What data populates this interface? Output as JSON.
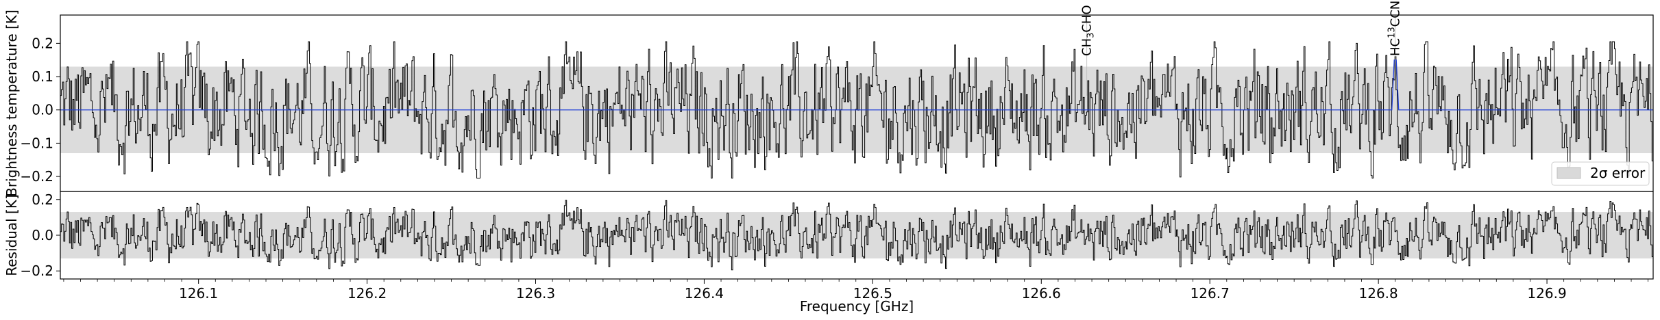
{
  "chart_data": [
    {
      "type": "line",
      "panel": "spectrum",
      "ylabel": "Brightness temperature [K]",
      "xlim": [
        126.018,
        126.963
      ],
      "ylim": [
        -0.245,
        0.285
      ],
      "yticks": [
        -0.2,
        -0.1,
        0.0,
        0.1,
        0.2
      ],
      "ytick_labels": [
        "−0.2",
        "−0.1",
        "0.0",
        "0.1",
        "0.2"
      ],
      "error_band": [
        -0.13,
        0.13
      ],
      "legend": {
        "label": "2σ error",
        "loc": "lower right"
      },
      "series": [
        {
          "role": "observed spectrum",
          "color": "#000000",
          "style": "steps",
          "x_start": 126.018,
          "x_end": 126.963,
          "y_sample": [
            0.06,
            -0.12,
            0.03,
            0.08,
            -0.05,
            0.15,
            -0.02,
            -0.18,
            0.12,
            0.04,
            -0.09,
            0.17,
            -0.06,
            0.02,
            0.11,
            -0.13,
            0.07,
            -0.04,
            0.14,
            -0.1
          ]
        },
        {
          "role": "model",
          "color": "#1f3fd6",
          "style": "line",
          "baseline": 0.0
        }
      ],
      "annotations": [
        {
          "x": 126.627,
          "base": "CH",
          "sub": "3",
          "rest": "CHO"
        },
        {
          "x": 126.81,
          "base": "HC",
          "sup": "13",
          "rest": "CCN",
          "model_peak": 0.15
        }
      ]
    },
    {
      "type": "line",
      "panel": "residual",
      "xlabel": "Frequency [GHz]",
      "ylabel": "Residual [K]",
      "xlim": [
        126.018,
        126.963
      ],
      "ylim": [
        -0.245,
        0.245
      ],
      "xticks": [
        126.1,
        126.2,
        126.3,
        126.4,
        126.5,
        126.6,
        126.7,
        126.8,
        126.9
      ],
      "xtick_labels": [
        "126.1",
        "126.2",
        "126.3",
        "126.4",
        "126.5",
        "126.6",
        "126.7",
        "126.8",
        "126.9"
      ],
      "yticks": [
        -0.2,
        0.0,
        0.2
      ],
      "ytick_labels": [
        "−0.2",
        "0.0",
        "0.2"
      ],
      "error_band": [
        -0.13,
        0.13
      ],
      "series": [
        {
          "role": "residual",
          "color": "#000000",
          "style": "steps"
        }
      ]
    }
  ]
}
